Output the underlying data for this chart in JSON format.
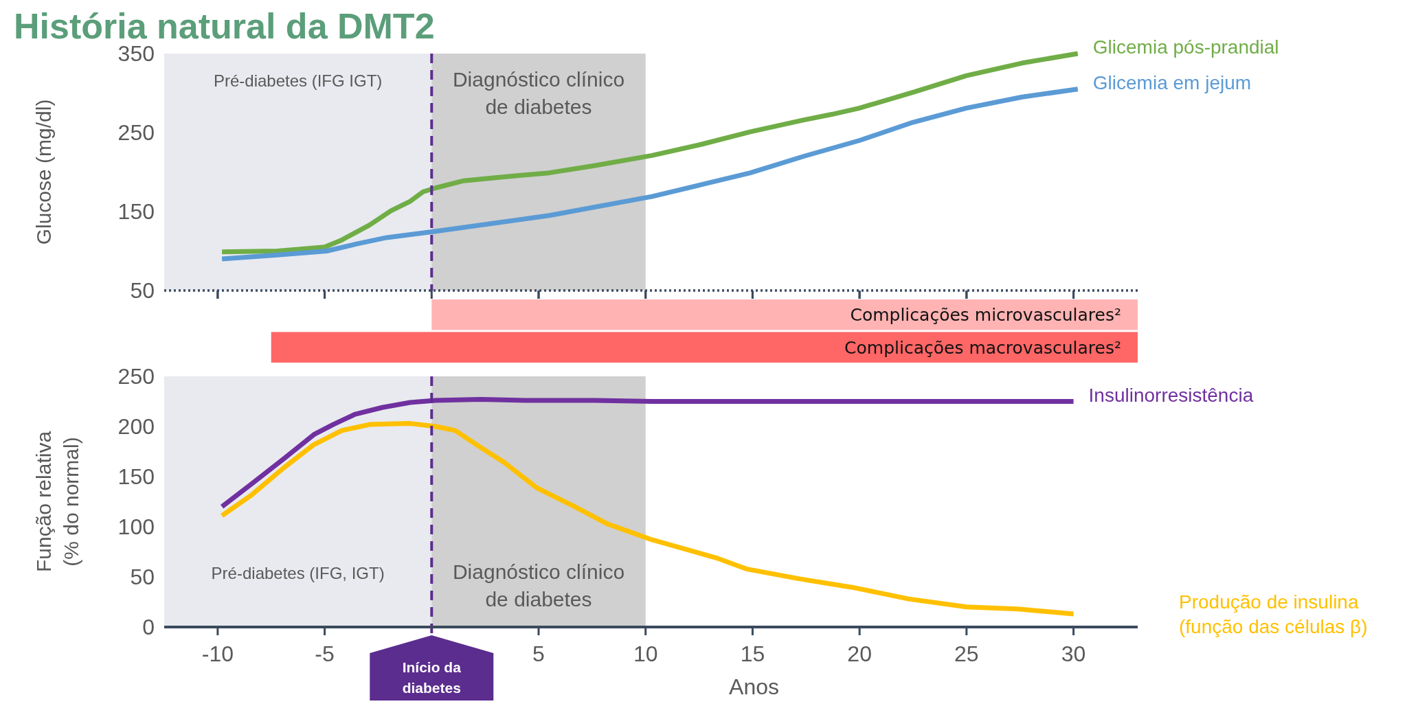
{
  "chart_data": [
    {
      "type": "line",
      "title": "História natural da DMT2",
      "ylabel": "Glucose (mg/dl)",
      "xlim": [
        -12.5,
        33
      ],
      "ylim": [
        50,
        350
      ],
      "yticks": [
        50,
        150,
        250,
        350
      ],
      "xticks": [
        -10,
        -5,
        0,
        5,
        10,
        15,
        20,
        25,
        30
      ],
      "tick_labels": "y",
      "bands": [
        {
          "axis": "x",
          "from": -12.5,
          "to": 0,
          "label": "Pré-diabetes  (IFG IGT)",
          "color": "#e8eaef"
        },
        {
          "axis": "x",
          "from": 0,
          "to": 10,
          "label": "Diagnóstico clínico\nde diabetes",
          "color": "#d0d0d0"
        }
      ],
      "ref_lines": [
        {
          "axis": "x",
          "value": 0,
          "color": "#5b2d8e",
          "line_style": "dashed"
        }
      ],
      "series": [
        {
          "name": "Glicemia pós-prandial",
          "color": "#70ad47",
          "x": [
            -9.8,
            -7.2,
            -5,
            -4.2,
            -2.9,
            -1.9,
            -1,
            -0.4,
            0.2,
            1.5,
            3.4,
            5.5,
            7.6,
            10.3,
            12.6,
            14.9,
            17.4,
            18.7,
            20,
            22.5,
            25,
            27.6,
            30.2
          ],
          "values": [
            99,
            100,
            105,
            114,
            133,
            151,
            163,
            175,
            180,
            189,
            194,
            199,
            208,
            221,
            235,
            251,
            266,
            273,
            281,
            301,
            322,
            338,
            350
          ]
        },
        {
          "name": "Glicemia em jejum",
          "color": "#5b9bd5",
          "x": [
            -9.8,
            -7.2,
            -4.9,
            -3.5,
            -2.1,
            0.2,
            5.5,
            10.3,
            12.6,
            14.9,
            17.4,
            20,
            22.5,
            25,
            27.6,
            30.2
          ],
          "values": [
            90,
            95,
            100,
            109,
            117,
            125,
            145,
            169,
            184,
            199,
            220,
            240,
            263,
            281,
            295,
            305
          ]
        }
      ]
    },
    {
      "type": "bar",
      "orientation": "horizontal",
      "categories": [
        "Complicações microvasculares²",
        "Complicações macrovasculares²"
      ],
      "base": [
        0,
        -7.5
      ],
      "values": [
        33,
        40.5
      ],
      "colors": [
        "#ffb3b3",
        "#ff6666"
      ],
      "xlim": [
        -12.5,
        33
      ],
      "xticks": [
        -10,
        -5,
        5,
        10,
        15,
        20,
        25,
        30
      ],
      "tick_labels": false
    },
    {
      "type": "line",
      "xlabel": "Anos",
      "ylabel": "Função relativa\n(% do normal)",
      "xlim": [
        -12.5,
        33
      ],
      "ylim": [
        0,
        250
      ],
      "yticks": [
        0,
        50,
        100,
        150,
        200,
        250
      ],
      "xticks": [
        -10,
        -5,
        5,
        10,
        15,
        20,
        25,
        30
      ],
      "bands": [
        {
          "axis": "x",
          "from": -12.5,
          "to": 0,
          "label": "Pré-diabetes  (IFG, IGT)",
          "color": "#e8eaef"
        },
        {
          "axis": "x",
          "from": 0,
          "to": 10,
          "label": "Diagnóstico clínico\nde diabetes",
          "color": "#d0d0d0"
        }
      ],
      "ref_lines": [
        {
          "axis": "x",
          "value": 0,
          "label": "Início da\ndiabetes",
          "color": "#5b2d8e",
          "line_style": "dashed"
        }
      ],
      "series": [
        {
          "name": "Insulinorresistência",
          "color": "#7030a0",
          "x": [
            -9.8,
            -8.4,
            -6.9,
            -5.5,
            -4.6,
            -3.6,
            -2.3,
            -1,
            0.2,
            2.3,
            4.5,
            7.6,
            10.3,
            13.3,
            20,
            25,
            30
          ],
          "values": [
            120,
            143,
            168,
            192,
            202,
            212,
            219,
            224,
            226,
            227,
            226,
            226,
            225,
            225,
            225,
            225,
            225
          ]
        },
        {
          "name": "Produção de insulina\n(função das células β)",
          "color": "#ffc000",
          "x": [
            -9.8,
            -8.4,
            -6.9,
            -5.5,
            -4.2,
            -2.9,
            -1,
            0.2,
            1.1,
            2.3,
            3.4,
            4.9,
            6.6,
            8.2,
            10.3,
            13.3,
            14.7,
            17.2,
            19.8,
            22.3,
            25,
            27.4,
            30
          ],
          "values": [
            111,
            132,
            159,
            182,
            196,
            202,
            203,
            200,
            196,
            179,
            164,
            139,
            121,
            103,
            87,
            69,
            58,
            48,
            39,
            28,
            20,
            18,
            13
          ]
        }
      ]
    }
  ]
}
